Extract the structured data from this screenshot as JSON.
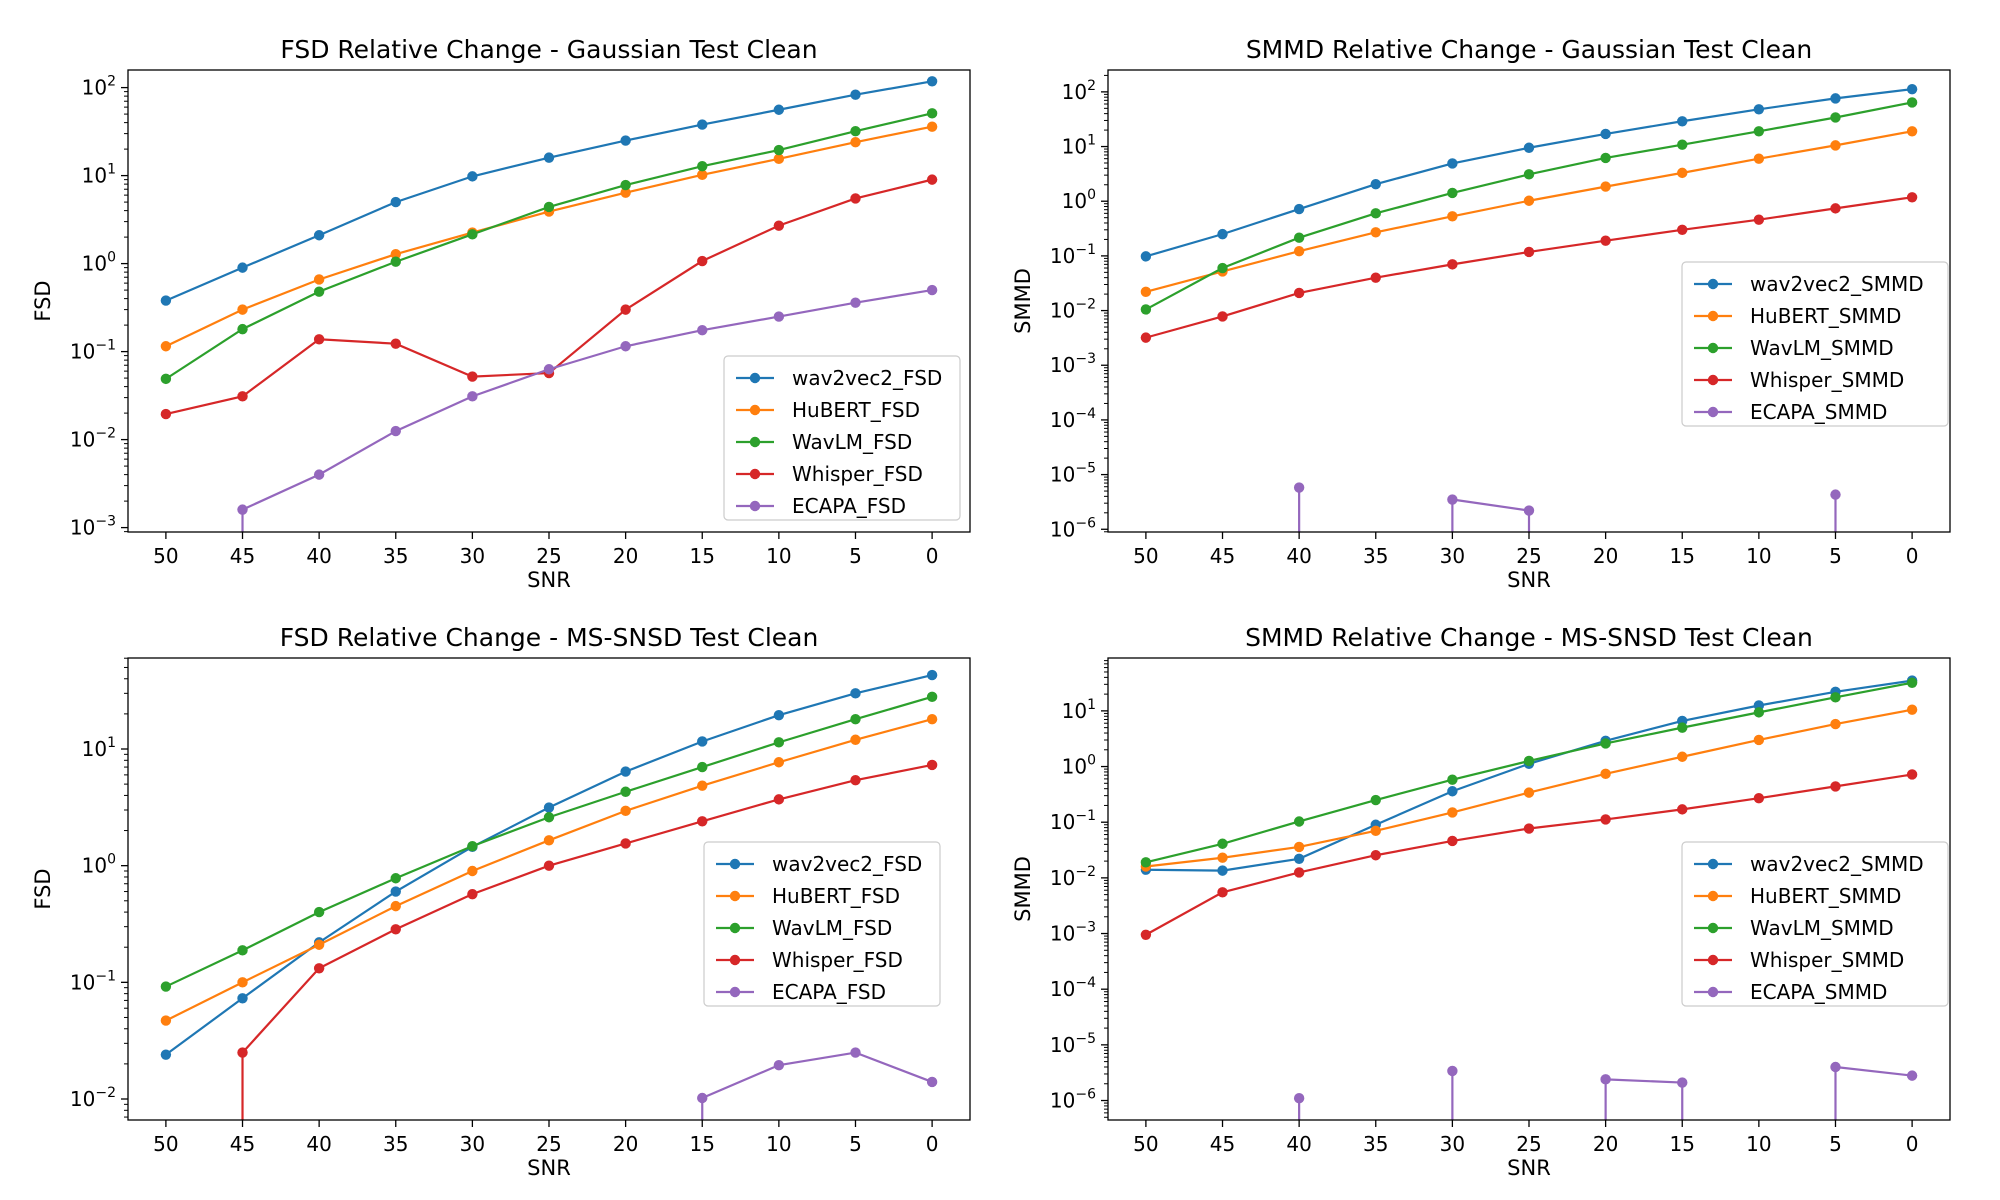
{
  "chart_data": [
    {
      "type": "line",
      "title": "FSD Relative Change - Gaussian Test Clean",
      "xlabel": "SNR",
      "ylabel": "FSD",
      "yscale": "log",
      "ylim_exp": [
        -3.05,
        2.2
      ],
      "y_ticks": [
        {
          "exp": -3,
          "label": "10",
          "sup": "−3"
        },
        {
          "exp": -2,
          "label": "10",
          "sup": "−2"
        },
        {
          "exp": -1,
          "label": "10",
          "sup": "−1"
        },
        {
          "exp": 0,
          "label": "10",
          "sup": "0"
        },
        {
          "exp": 1,
          "label": "10",
          "sup": "1"
        },
        {
          "exp": 2,
          "label": "10",
          "sup": "2"
        }
      ],
      "x": [
        50,
        45,
        40,
        35,
        30,
        25,
        20,
        15,
        10,
        5,
        0
      ],
      "x_tick_labels": [
        "50",
        "45",
        "40",
        "35",
        "30",
        "25",
        "20",
        "15",
        "10",
        "5",
        "0"
      ],
      "legend_position": "lower-right",
      "series": [
        {
          "name": "wav2vec2_FSD",
          "color": "#1f77b4",
          "values": [
            0.38,
            0.9,
            2.1,
            5.0,
            9.8,
            16,
            25,
            38,
            56,
            83,
            118
          ]
        },
        {
          "name": "HuBERT_FSD",
          "color": "#ff7f0e",
          "values": [
            0.115,
            0.3,
            0.66,
            1.28,
            2.25,
            3.9,
            6.4,
            10.2,
            15.5,
            24,
            36
          ]
        },
        {
          "name": "WavLM_FSD",
          "color": "#2ca02c",
          "values": [
            0.049,
            0.18,
            0.48,
            1.05,
            2.15,
            4.4,
            7.8,
            12.8,
            19.5,
            32,
            51
          ]
        },
        {
          "name": "Whisper_FSD",
          "color": "#d62728",
          "values": [
            0.0195,
            0.031,
            0.138,
            0.123,
            0.052,
            0.057,
            0.3,
            1.07,
            2.7,
            5.5,
            9.0
          ]
        },
        {
          "name": "ECAPA_FSD",
          "color": "#9467bd",
          "values": [
            null,
            0.0016,
            0.004,
            0.0125,
            0.031,
            0.063,
            0.115,
            0.175,
            0.25,
            0.36,
            0.5
          ]
        }
      ]
    },
    {
      "type": "line",
      "title": "SMMD Relative Change - Gaussian Test Clean",
      "xlabel": "SNR",
      "ylabel": "SMMD",
      "yscale": "log",
      "ylim_exp": [
        -6.05,
        2.4
      ],
      "y_ticks": [
        {
          "exp": -6,
          "label": "10",
          "sup": "−6"
        },
        {
          "exp": -5,
          "label": "10",
          "sup": "−5"
        },
        {
          "exp": -4,
          "label": "10",
          "sup": "−4"
        },
        {
          "exp": -3,
          "label": "10",
          "sup": "−3"
        },
        {
          "exp": -2,
          "label": "10",
          "sup": "−2"
        },
        {
          "exp": -1,
          "label": "10",
          "sup": "−1"
        },
        {
          "exp": 0,
          "label": "10",
          "sup": "0"
        },
        {
          "exp": 1,
          "label": "10",
          "sup": "1"
        },
        {
          "exp": 2,
          "label": "10",
          "sup": "2"
        }
      ],
      "x": [
        50,
        45,
        40,
        35,
        30,
        25,
        20,
        15,
        10,
        5,
        0
      ],
      "x_tick_labels": [
        "50",
        "45",
        "40",
        "35",
        "30",
        "25",
        "20",
        "15",
        "10",
        "5",
        "0"
      ],
      "legend_position": "center-right",
      "series": [
        {
          "name": "wav2vec2_SMMD",
          "color": "#1f77b4",
          "values": [
            0.098,
            0.25,
            0.72,
            2.05,
            4.9,
            9.5,
            17,
            29,
            48,
            76,
            112
          ]
        },
        {
          "name": "HuBERT_SMMD",
          "color": "#ff7f0e",
          "values": [
            0.022,
            0.052,
            0.122,
            0.27,
            0.53,
            1.02,
            1.85,
            3.3,
            6.0,
            10.5,
            19
          ]
        },
        {
          "name": "WavLM_SMMD",
          "color": "#2ca02c",
          "values": [
            0.0105,
            0.06,
            0.215,
            0.6,
            1.42,
            3.1,
            6.2,
            10.8,
            19,
            34,
            64
          ]
        },
        {
          "name": "Whisper_SMMD",
          "color": "#d62728",
          "values": [
            0.0032,
            0.0078,
            0.021,
            0.04,
            0.07,
            0.118,
            0.19,
            0.3,
            0.46,
            0.74,
            1.18
          ]
        },
        {
          "name": "ECAPA_SMMD",
          "color": "#9467bd",
          "values": [
            null,
            null,
            5.8e-06,
            null,
            3.5e-06,
            2.2e-06,
            null,
            null,
            null,
            4.3e-06,
            null
          ]
        }
      ]
    },
    {
      "type": "line",
      "title": "FSD Relative Change - MS-SNSD Test Clean",
      "xlabel": "SNR",
      "ylabel": "FSD",
      "yscale": "log",
      "ylim_exp": [
        -2.18,
        1.78
      ],
      "y_ticks": [
        {
          "exp": -2,
          "label": "10",
          "sup": "−2"
        },
        {
          "exp": -1,
          "label": "10",
          "sup": "−1"
        },
        {
          "exp": 0,
          "label": "10",
          "sup": "0"
        },
        {
          "exp": 1,
          "label": "10",
          "sup": "1"
        }
      ],
      "x": [
        50,
        45,
        40,
        35,
        30,
        25,
        20,
        15,
        10,
        5,
        0
      ],
      "x_tick_labels": [
        "50",
        "45",
        "40",
        "35",
        "30",
        "25",
        "20",
        "15",
        "10",
        "5",
        "0"
      ],
      "legend_position": "center-right",
      "series": [
        {
          "name": "wav2vec2_FSD",
          "color": "#1f77b4",
          "values": [
            0.024,
            0.073,
            0.22,
            0.6,
            1.45,
            3.15,
            6.4,
            11.6,
            19.5,
            30,
            43
          ]
        },
        {
          "name": "HuBERT_FSD",
          "color": "#ff7f0e",
          "values": [
            0.047,
            0.1,
            0.21,
            0.45,
            0.9,
            1.65,
            2.95,
            4.85,
            7.7,
            12,
            18
          ]
        },
        {
          "name": "WavLM_FSD",
          "color": "#2ca02c",
          "values": [
            0.092,
            0.188,
            0.4,
            0.78,
            1.47,
            2.6,
            4.3,
            7.0,
            11.4,
            18,
            28
          ]
        },
        {
          "name": "Whisper_FSD",
          "color": "#d62728",
          "values": [
            null,
            0.025,
            0.132,
            0.285,
            0.57,
            1.0,
            1.55,
            2.4,
            3.7,
            5.4,
            7.3
          ]
        },
        {
          "name": "ECAPA_FSD",
          "color": "#9467bd",
          "values": [
            null,
            null,
            null,
            null,
            null,
            null,
            null,
            0.0102,
            0.0195,
            0.025,
            0.014
          ]
        }
      ]
    },
    {
      "type": "line",
      "title": "SMMD Relative Change - MS-SNSD Test Clean",
      "xlabel": "SNR",
      "ylabel": "SMMD",
      "yscale": "log",
      "ylim_exp": [
        -6.35,
        1.95
      ],
      "y_ticks": [
        {
          "exp": -6,
          "label": "10",
          "sup": "−6"
        },
        {
          "exp": -5,
          "label": "10",
          "sup": "−5"
        },
        {
          "exp": -4,
          "label": "10",
          "sup": "−4"
        },
        {
          "exp": -3,
          "label": "10",
          "sup": "−3"
        },
        {
          "exp": -2,
          "label": "10",
          "sup": "−2"
        },
        {
          "exp": -1,
          "label": "10",
          "sup": "−1"
        },
        {
          "exp": 0,
          "label": "10",
          "sup": "0"
        },
        {
          "exp": 1,
          "label": "10",
          "sup": "1"
        }
      ],
      "x": [
        50,
        45,
        40,
        35,
        30,
        25,
        20,
        15,
        10,
        5,
        0
      ],
      "x_tick_labels": [
        "50",
        "45",
        "40",
        "35",
        "30",
        "25",
        "20",
        "15",
        "10",
        "5",
        "0"
      ],
      "legend_position": "center-right",
      "series": [
        {
          "name": "wav2vec2_SMMD",
          "color": "#1f77b4",
          "values": [
            0.014,
            0.0135,
            0.022,
            0.09,
            0.36,
            1.12,
            2.9,
            6.6,
            12.5,
            22,
            35
          ]
        },
        {
          "name": "HuBERT_SMMD",
          "color": "#ff7f0e",
          "values": [
            0.016,
            0.023,
            0.036,
            0.07,
            0.15,
            0.34,
            0.74,
            1.5,
            3.0,
            5.8,
            10.5
          ]
        },
        {
          "name": "WavLM_SMMD",
          "color": "#2ca02c",
          "values": [
            0.019,
            0.041,
            0.103,
            0.25,
            0.58,
            1.26,
            2.6,
            5.0,
            9.4,
            17.5,
            32
          ]
        },
        {
          "name": "Whisper_SMMD",
          "color": "#d62728",
          "values": [
            0.00095,
            0.0055,
            0.0125,
            0.0255,
            0.046,
            0.077,
            0.112,
            0.17,
            0.27,
            0.44,
            0.72
          ]
        },
        {
          "name": "ECAPA_SMMD",
          "color": "#9467bd",
          "values": [
            null,
            null,
            1.1e-06,
            null,
            3.4e-06,
            null,
            2.4e-06,
            2.1e-06,
            null,
            4e-06,
            2.8e-06
          ]
        }
      ]
    }
  ]
}
